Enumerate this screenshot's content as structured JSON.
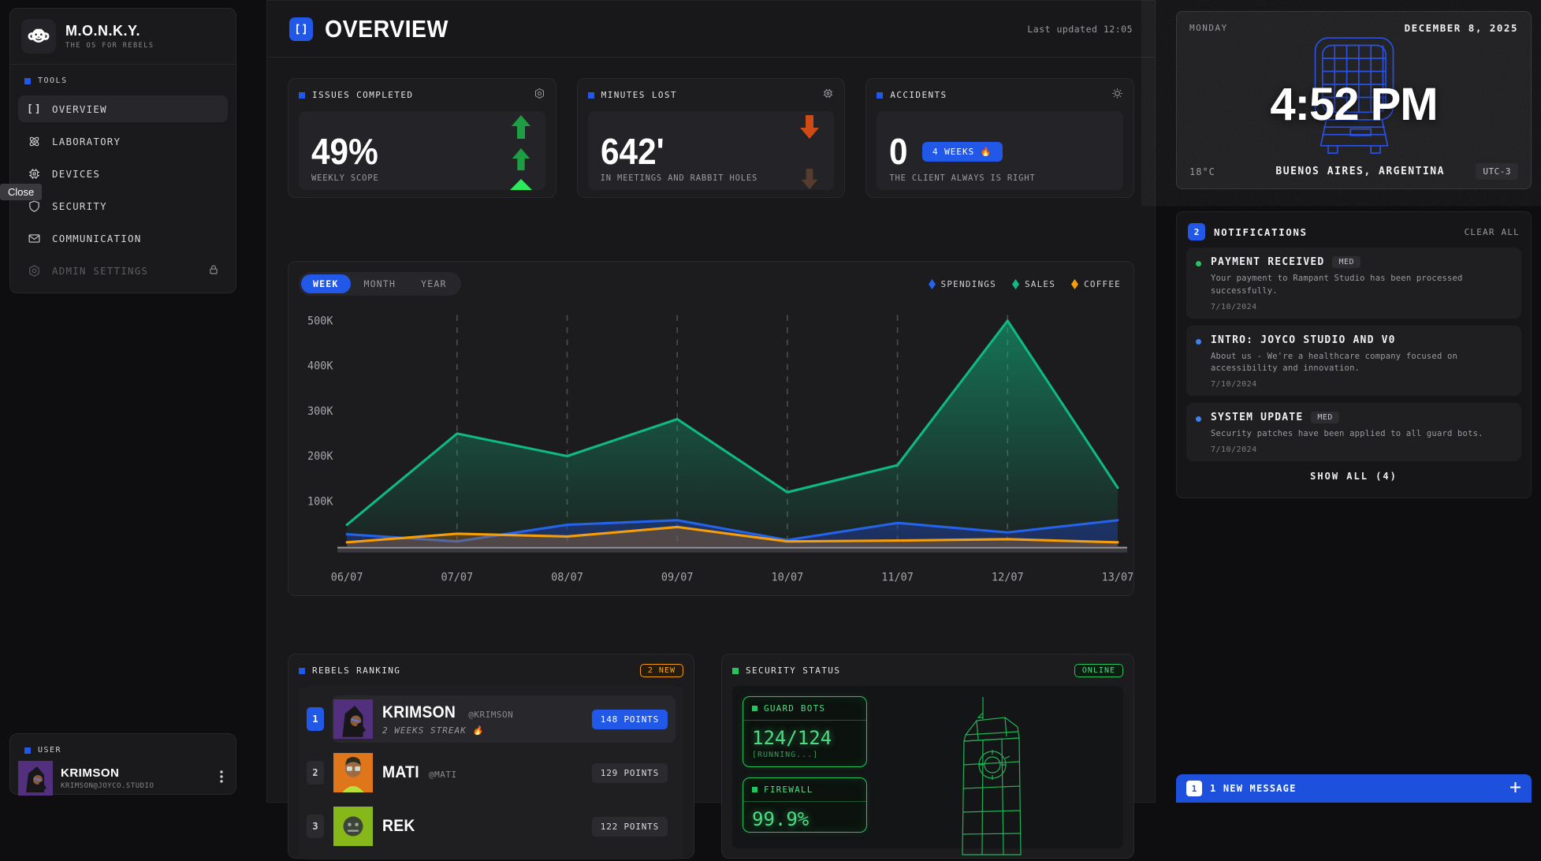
{
  "sidebar": {
    "logo": {
      "title": "M.O.N.K.Y.",
      "subtitle": "THE OS FOR REBELS"
    },
    "section_label": "TOOLS",
    "items": [
      {
        "label": "OVERVIEW",
        "active": true
      },
      {
        "label": "LABORATORY"
      },
      {
        "label": "DEVICES"
      },
      {
        "label": "SECURITY"
      },
      {
        "label": "COMMUNICATION"
      },
      {
        "label": "ADMIN SETTINGS",
        "locked": true
      }
    ],
    "tooltip": "Close",
    "user": {
      "section_label": "USER",
      "name": "KRIMSON",
      "email": "KRIMSON@JOYCO.STUDIO"
    }
  },
  "header": {
    "title": "OVERVIEW",
    "last_updated": "Last updated 12:05"
  },
  "stats": [
    {
      "title": "ISSUES COMPLETED",
      "value": "49%",
      "caption": "WEEKLY SCOPE",
      "trend": "up"
    },
    {
      "title": "MINUTES LOST",
      "value": "642'",
      "caption": "IN MEETINGS AND RABBIT HOLES",
      "trend": "down"
    },
    {
      "title": "ACCIDENTS",
      "value": "0",
      "badge": "4 WEEKS 🔥",
      "caption": "THE CLIENT ALWAYS IS RIGHT"
    }
  ],
  "chart": {
    "tabs": [
      "WEEK",
      "MONTH",
      "YEAR"
    ],
    "active_tab": "WEEK",
    "legend": [
      {
        "label": "SPENDINGS",
        "color": "#2563eb"
      },
      {
        "label": "SALES",
        "color": "#10b981"
      },
      {
        "label": "COFFEE",
        "color": "#f59e0b"
      }
    ]
  },
  "chart_data": {
    "type": "area",
    "x": [
      "06/07",
      "07/07",
      "08/07",
      "09/07",
      "10/07",
      "11/07",
      "12/07",
      "13/07"
    ],
    "unit": "K",
    "ylim": [
      0,
      500
    ],
    "y_ticks": [
      "100K",
      "200K",
      "300K",
      "400K",
      "500K"
    ],
    "grid": "vertical-dashed",
    "legend_position": "top-right",
    "series": [
      {
        "name": "SALES",
        "color": "#10b981",
        "fill": "gradient",
        "values": [
          48,
          250,
          200,
          282,
          120,
          180,
          500,
          130
        ]
      },
      {
        "name": "SPENDINGS",
        "color": "#2563eb",
        "fill": "rgba(30,64,175,0.45)",
        "values": [
          27,
          11,
          48,
          58,
          14,
          52,
          31,
          58
        ]
      },
      {
        "name": "COFFEE",
        "color": "#f59e0b",
        "fill": "rgba(175,115,25,0.35)",
        "values": [
          9,
          28,
          22,
          43,
          11,
          13,
          16,
          9
        ]
      }
    ]
  },
  "ranking": {
    "title": "REBELS RANKING",
    "badge": "2 NEW",
    "rows": [
      {
        "rank": "1",
        "name": "KRIMSON",
        "handle": "@KRIMSON",
        "streak": "2 WEEKS STREAK 🔥",
        "points": "148 POINTS"
      },
      {
        "rank": "2",
        "name": "MATI",
        "handle": "@MATI",
        "points": "129 POINTS"
      },
      {
        "rank": "3",
        "name": "REK",
        "points": "122 POINTS"
      }
    ]
  },
  "security": {
    "title": "SECURITY STATUS",
    "status": "ONLINE",
    "guard_bots": {
      "title": "GUARD BOTS",
      "value": "124/124",
      "status": "[RUNNING...]"
    },
    "firewall": {
      "title": "FIREWALL",
      "value": "99.9%"
    }
  },
  "clock": {
    "day": "MONDAY",
    "date": "DECEMBER 8, 2025",
    "time": "4:52 PM",
    "temp": "18°C",
    "location": "BUENOS AIRES, ARGENTINA",
    "utc": "UTC-3"
  },
  "notifications": {
    "count": "2",
    "title": "NOTIFICATIONS",
    "clear": "CLEAR ALL",
    "items": [
      {
        "dot": "#22c55e",
        "title": "PAYMENT RECEIVED",
        "badge": "MED",
        "body": "Your payment to Rampant Studio has been processed successfully.",
        "date": "7/10/2024"
      },
      {
        "dot": "#3b82f6",
        "title": "INTRO: JOYCO STUDIO AND V0",
        "body": "About us - We're a healthcare company focused on accessibility and innovation.",
        "date": "7/10/2024"
      },
      {
        "dot": "#3b82f6",
        "title": "SYSTEM UPDATE",
        "badge": "MED",
        "body": "Security patches have been applied to all guard bots.",
        "date": "7/10/2024"
      }
    ],
    "show_all": "SHOW ALL (4)"
  },
  "message_bar": {
    "count": "1",
    "label": "1 NEW MESSAGE"
  }
}
